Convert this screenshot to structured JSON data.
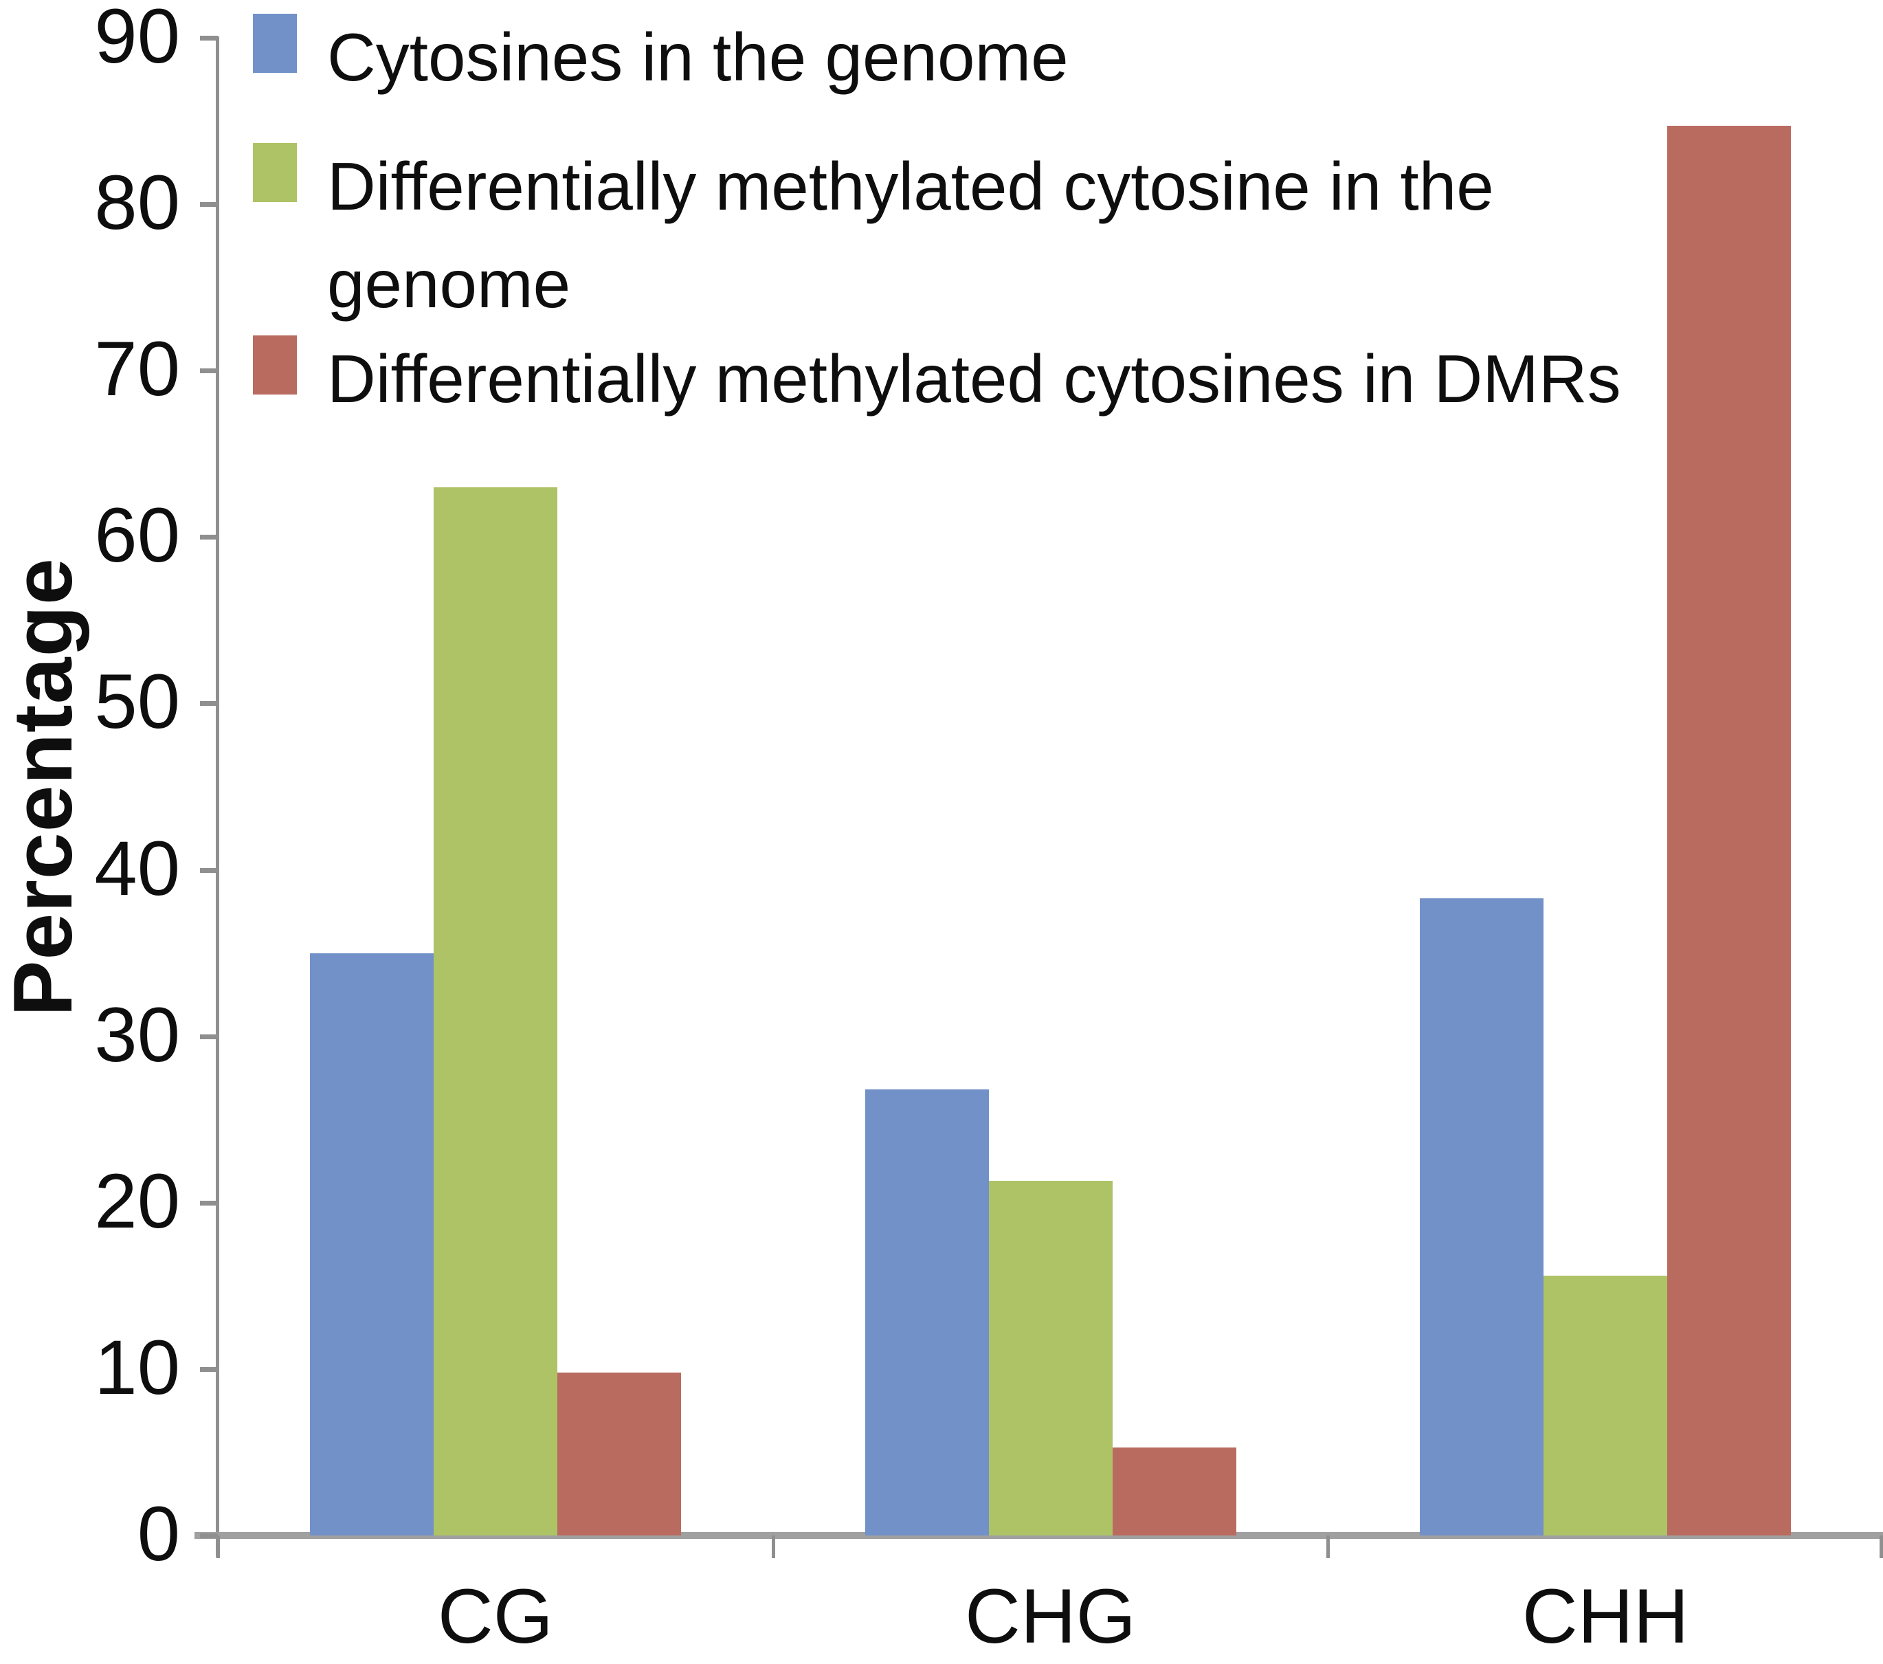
{
  "chart_data": {
    "type": "bar",
    "title": "",
    "xlabel": "",
    "ylabel": "Percentage",
    "ylim": [
      0,
      90
    ],
    "yticks": [
      0,
      10,
      20,
      30,
      40,
      50,
      60,
      70,
      80,
      90
    ],
    "ytick_labels": [
      "0",
      "10",
      "20",
      "30",
      "40",
      "50",
      "60",
      "70",
      "80",
      "90"
    ],
    "grid": false,
    "legend_position": "top-left",
    "categories": [
      "CG",
      "CHG",
      "CHH"
    ],
    "series": [
      {
        "name": "Cytosines in the genome",
        "color": "#7191C8",
        "values": [
          35,
          26.8,
          38.3
        ]
      },
      {
        "name": "Differentially methylated cytosine in the genome",
        "color": "#AEC366",
        "values": [
          63,
          21.3,
          15.6
        ]
      },
      {
        "name": "Differentially methylated cytosines in DMRs",
        "color": "#BA6B60",
        "values": [
          9.8,
          5.3,
          84.7
        ]
      }
    ],
    "colors": {
      "axis_line": "#8f8f8f",
      "baseline": "#a0a0a0",
      "text": "#0e0e0e",
      "background": "#ffffff"
    }
  }
}
